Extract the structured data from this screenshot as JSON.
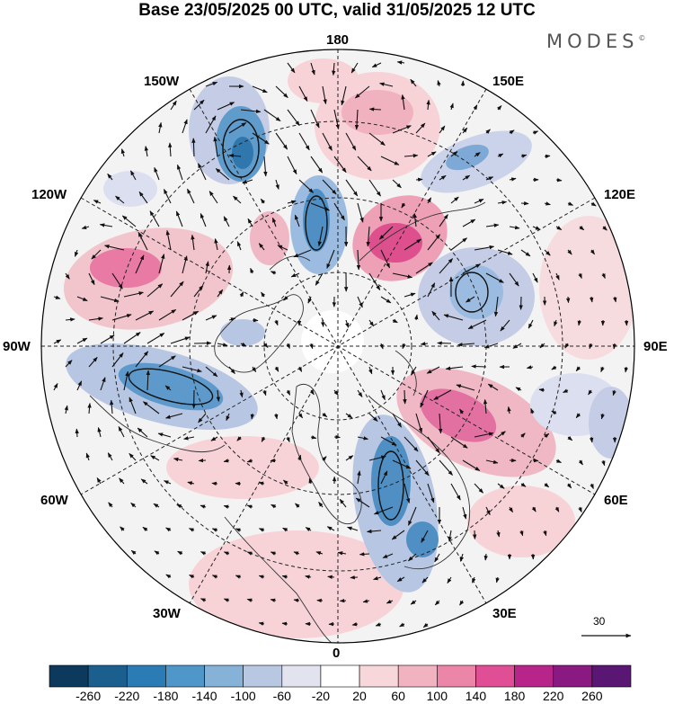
{
  "title": "Base 23/05/2025 00 UTC, valid 31/05/2025 12 UTC",
  "brand": "MODES",
  "brand_mark": "©",
  "map": {
    "projection": "north polar stereographic",
    "center_longitude_at_bottom": "0",
    "longitude_labels": {
      "top": "180",
      "bottom": "0",
      "left": "90W",
      "right": "90E",
      "upper_left": "150W",
      "upper_left2": "120W",
      "upper_right": "150E",
      "upper_right2": "120E",
      "lower_left": "60W",
      "lower_left2": "30W",
      "lower_right": "60E",
      "lower_right2": "30E"
    },
    "reference_vector": "30"
  },
  "colorbar": {
    "ticks": [
      "-260",
      "-220",
      "-180",
      "-140",
      "-100",
      "-60",
      "-20",
      "20",
      "60",
      "100",
      "140",
      "180",
      "220",
      "260"
    ],
    "colors": [
      "#0d3a5c",
      "#1b5f8f",
      "#2b7bb5",
      "#4f97c8",
      "#86b2d8",
      "#b8c8e3",
      "#e3e3f0",
      "#ffffff",
      "#f7d7d9",
      "#f2b3c0",
      "#ec86a8",
      "#e04f96",
      "#b7258b",
      "#8a1a82",
      "#5a1673"
    ]
  }
}
